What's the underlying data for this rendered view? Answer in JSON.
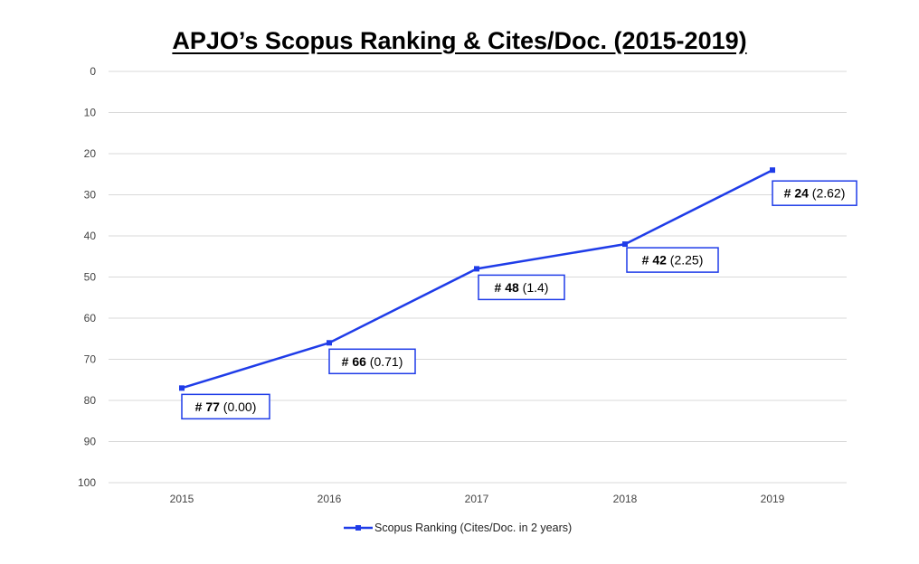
{
  "chart_data": {
    "type": "line",
    "title": "APJO’s Scopus Ranking & Cites/Doc. (2015-2019)",
    "xlabel": "",
    "ylabel": "",
    "categories": [
      "2015",
      "2016",
      "2017",
      "2018",
      "2019"
    ],
    "series": [
      {
        "name": "Scopus Ranking (Cites/Doc. in 2 years)",
        "values": [
          77,
          66,
          48,
          42,
          24
        ],
        "color": "#1f3ce8"
      }
    ],
    "data_labels": [
      {
        "rank": "# 77",
        "cites": "(0.00)"
      },
      {
        "rank": "# 66",
        "cites": "(0.71)"
      },
      {
        "rank": "# 48",
        "cites": "(1.4)"
      },
      {
        "rank": "# 42",
        "cites": "(2.25)"
      },
      {
        "rank": "# 24",
        "cites": "(2.62)"
      }
    ],
    "y_ticks": [
      "0",
      "10",
      "20",
      "30",
      "40",
      "50",
      "60",
      "70",
      "80",
      "90",
      "100"
    ],
    "ylim": [
      0,
      100
    ],
    "y_reversed": true,
    "grid": "horizontal",
    "legend_position": "bottom"
  }
}
